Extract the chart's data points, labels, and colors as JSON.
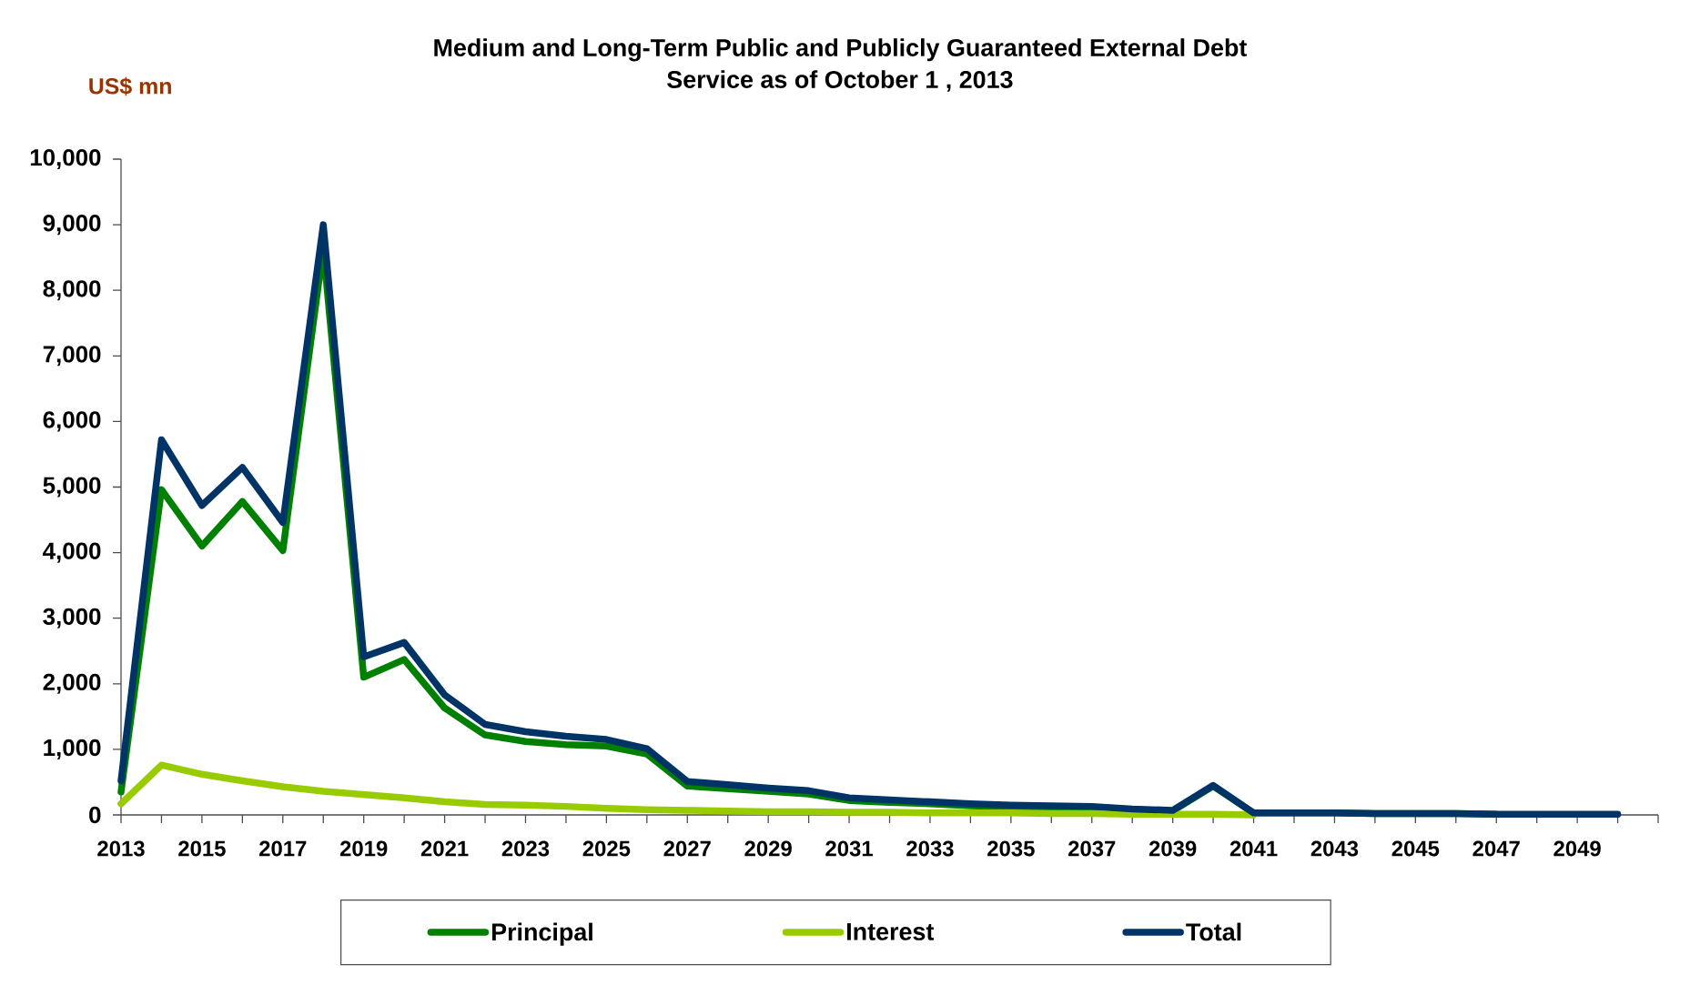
{
  "chart_data": {
    "type": "line",
    "title": "Medium and Long-Term Public and Publicly Guaranteed External Debt Service as of October 1 , 2013",
    "ylabel": "US$ mn",
    "x": [
      2013,
      2014,
      2015,
      2016,
      2017,
      2018,
      2019,
      2020,
      2021,
      2022,
      2023,
      2024,
      2025,
      2026,
      2027,
      2028,
      2029,
      2030,
      2031,
      2032,
      2033,
      2034,
      2035,
      2036,
      2037,
      2038,
      2039,
      2040,
      2041,
      2042,
      2043,
      2044,
      2045,
      2046,
      2047,
      2048,
      2049,
      2050
    ],
    "series": [
      {
        "name": "Principal",
        "color": "#008000",
        "values": [
          350,
          4960,
          4100,
          4780,
          4030,
          8640,
          2100,
          2370,
          1630,
          1220,
          1120,
          1070,
          1050,
          930,
          440,
          400,
          360,
          320,
          220,
          190,
          170,
          140,
          120,
          120,
          110,
          80,
          60,
          440,
          30,
          30,
          30,
          20,
          20,
          20,
          10,
          null,
          null,
          null
        ]
      },
      {
        "name": "Interest",
        "color": "#99cc00",
        "values": [
          170,
          760,
          620,
          520,
          430,
          360,
          310,
          260,
          200,
          160,
          150,
          130,
          100,
          80,
          70,
          60,
          50,
          50,
          40,
          40,
          30,
          30,
          30,
          20,
          20,
          10,
          10,
          10,
          0,
          null,
          null,
          null,
          null,
          null,
          null,
          null,
          null,
          null
        ]
      },
      {
        "name": "Total",
        "color": "#003366",
        "values": [
          520,
          5720,
          4720,
          5300,
          4460,
          9000,
          2410,
          2630,
          1830,
          1380,
          1270,
          1200,
          1150,
          1010,
          510,
          460,
          410,
          370,
          260,
          230,
          200,
          170,
          150,
          140,
          130,
          90,
          70,
          450,
          30,
          30,
          30,
          20,
          20,
          20,
          10,
          10,
          10,
          10
        ]
      }
    ],
    "xlim": [
      2013,
      2051
    ],
    "xticks": [
      2013,
      {
        "value": 2014,
        "label": null
      },
      2015,
      {
        "value": 2016,
        "label": null
      },
      2017,
      {
        "value": 2018,
        "label": null
      },
      2019,
      {
        "value": 2020,
        "label": null
      },
      2021,
      {
        "value": 2022,
        "label": null
      },
      2023,
      {
        "value": 2024,
        "label": null
      },
      2025,
      {
        "value": 2026,
        "label": null
      },
      2027,
      {
        "value": 2028,
        "label": null
      },
      2029,
      {
        "value": 2030,
        "label": null
      },
      2031,
      {
        "value": 2032,
        "label": null
      },
      2033,
      {
        "value": 2034,
        "label": null
      },
      2035,
      {
        "value": 2036,
        "label": null
      },
      2037,
      {
        "value": 2038,
        "label": null
      },
      2039,
      {
        "value": 2040,
        "label": null
      },
      2041,
      {
        "value": 2042,
        "label": null
      },
      2043,
      {
        "value": 2044,
        "label": null
      },
      2045,
      {
        "value": 2046,
        "label": null
      },
      2047,
      {
        "value": 2048,
        "label": null
      },
      2049,
      {
        "value": 2050,
        "label": null
      },
      {
        "value": 2051,
        "label": null
      }
    ],
    "ylim": [
      0,
      10000
    ],
    "yticks": [
      0,
      {
        "value": 1000,
        "label": "1,000"
      },
      {
        "value": 2000,
        "label": "2,000"
      },
      {
        "value": 3000,
        "label": "3,000"
      },
      {
        "value": 4000,
        "label": "4,000"
      },
      {
        "value": 5000,
        "label": "5,000"
      },
      {
        "value": 6000,
        "label": "6,000"
      },
      {
        "value": 7000,
        "label": "7,000"
      },
      {
        "value": 8000,
        "label": "8,000"
      },
      {
        "value": 9000,
        "label": "9,000"
      },
      {
        "value": 10000,
        "label": "10,000"
      }
    ],
    "legend": "bottom",
    "line_style": "solid"
  }
}
